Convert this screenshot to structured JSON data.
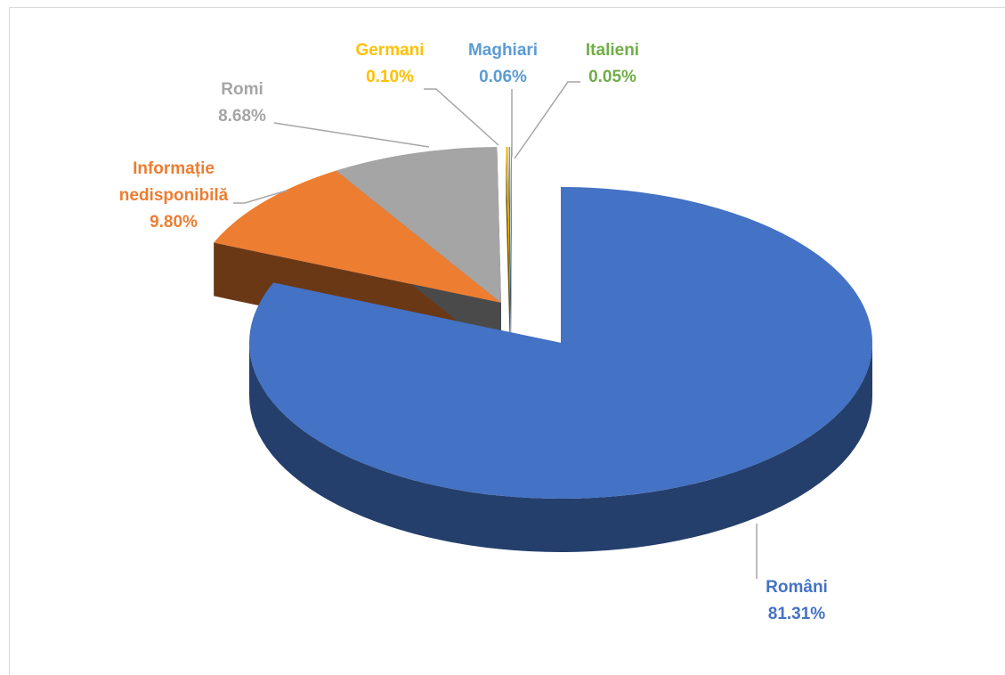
{
  "chart_data": {
    "type": "pie",
    "categories": [
      "Români",
      "Informație nedisponibilă",
      "Romi",
      "Germani",
      "Maghiari",
      "Italieni"
    ],
    "values": [
      81.31,
      9.8,
      8.68,
      0.1,
      0.06,
      0.05
    ],
    "value_labels": [
      "81.31%",
      "9.80%",
      "8.68%",
      "0.10%",
      "0.06%",
      "0.05%"
    ],
    "colors": [
      "#4472c4",
      "#ed7d31",
      "#a5a5a5",
      "#ffc000",
      "#5b9bd5",
      "#70ad47"
    ]
  }
}
